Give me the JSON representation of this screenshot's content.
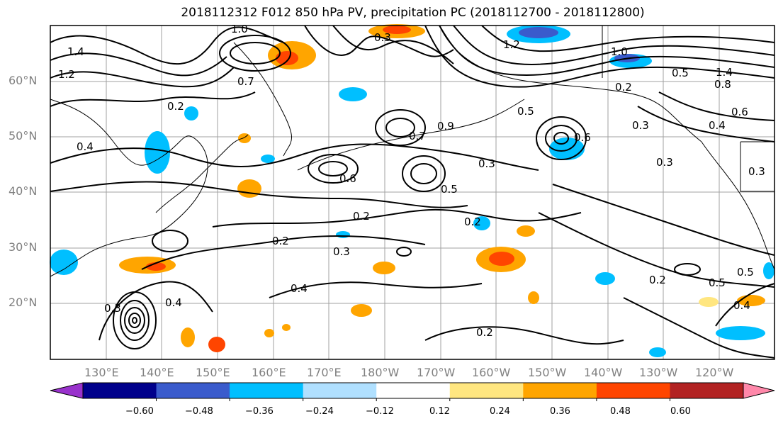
{
  "title": "2018112312 F012 850 hPa PV, precipitation PC (2018112700 - 2018112800)",
  "lat_labels": [
    "60°N",
    "50°N",
    "40°N",
    "30°N",
    "20°N"
  ],
  "lon_labels": [
    "130°E",
    "140°E",
    "150°E",
    "160°E",
    "170°E",
    "180°W",
    "170°W",
    "160°W",
    "150°W",
    "140°W",
    "130°W",
    "120°W"
  ],
  "contour_labels": [
    "1.0",
    "1.4",
    "1.2",
    "0.7",
    "0.3",
    "1.2",
    "1.0",
    "1.4",
    "0.8",
    "0.6",
    "0.4",
    "0.3",
    "0.5",
    "0.2",
    "0.7",
    "0.9",
    "0.5",
    "0.6",
    "0.5",
    "0.6",
    "0.3",
    "0.2",
    "0.2",
    "0.2",
    "0.3",
    "0.4",
    "0.2",
    "0.3",
    "0.4",
    "0.5",
    "0.4",
    "0.2",
    "0.3",
    "0.2",
    "0.3",
    "0.5",
    "0.4"
  ],
  "colorbar": {
    "ticks": [
      "−0.60",
      "−0.48",
      "−0.36",
      "−0.24",
      "−0.12",
      "0.12",
      "0.24",
      "0.36",
      "0.48",
      "0.60"
    ],
    "colors": [
      "#9932cc",
      "#00008b",
      "#3a5bcc",
      "#00bfff",
      "#b0e0ff",
      "#ffffff",
      "#ffe680",
      "#ffa500",
      "#ff4500",
      "#b22222",
      "#ff88aa"
    ]
  },
  "colors": {
    "contour": "#000000",
    "grid": "#a0a0a0",
    "coast": "#000000",
    "frame": "#000000"
  }
}
